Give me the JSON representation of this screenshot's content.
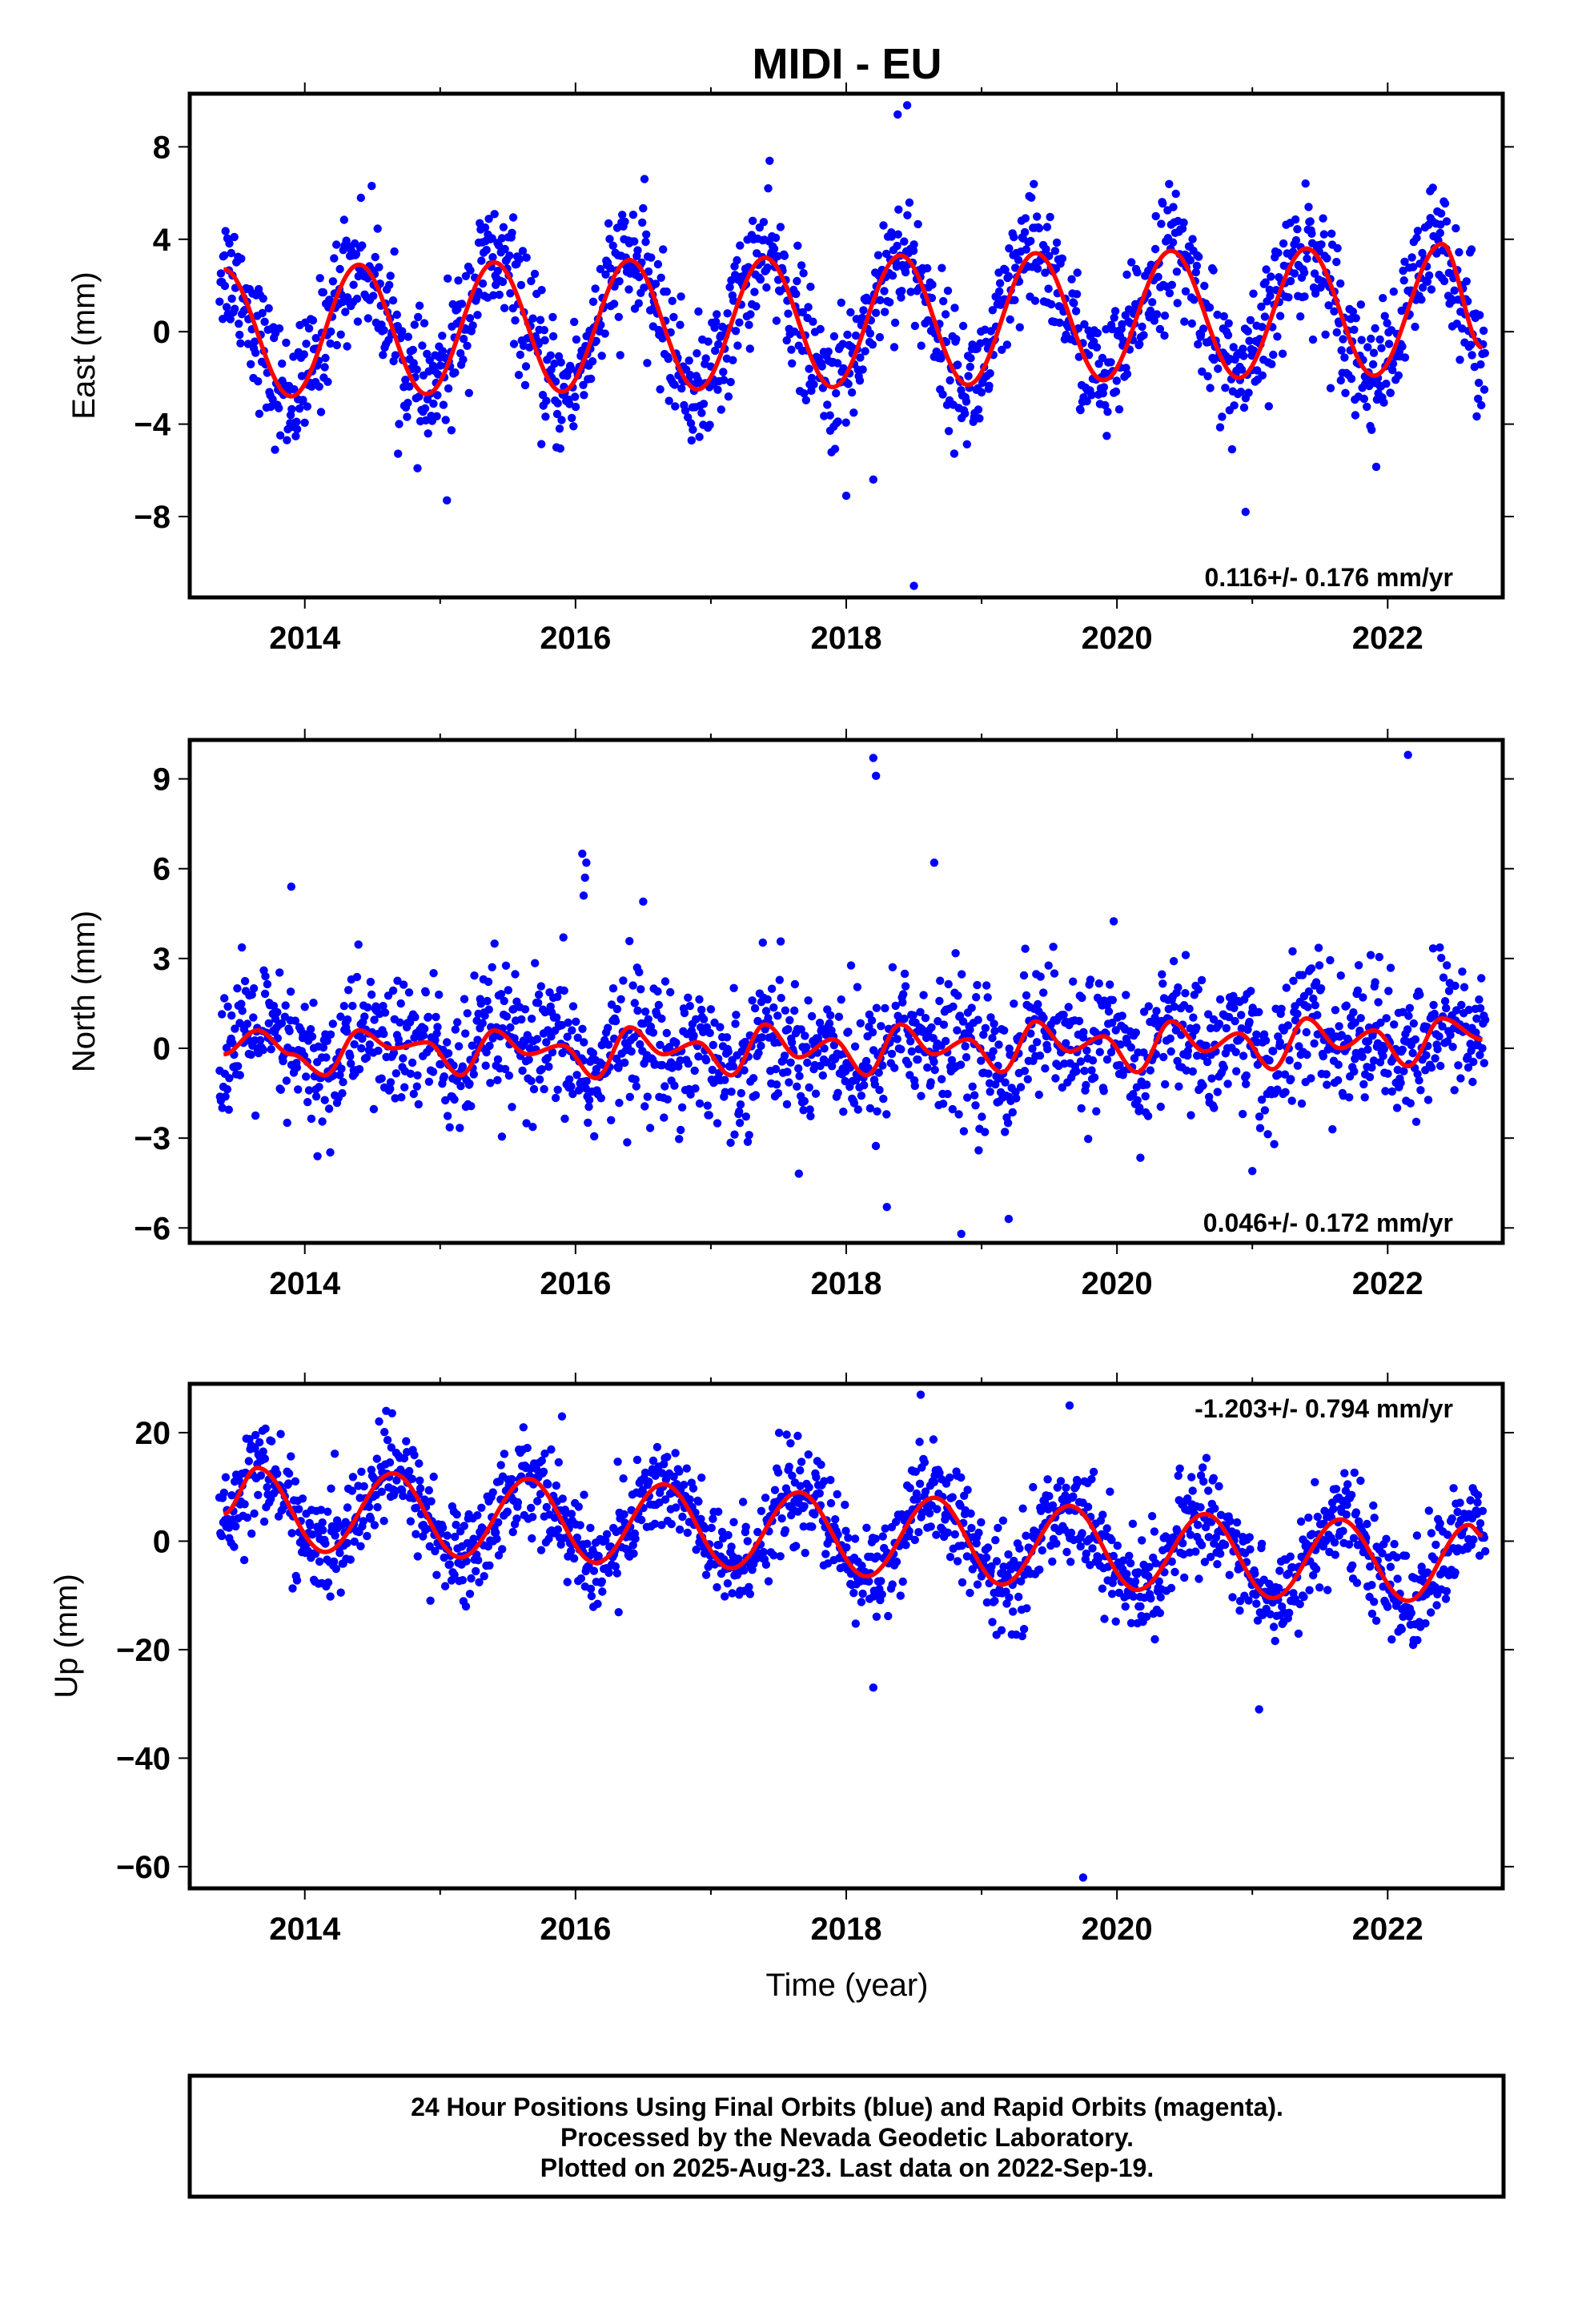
{
  "title": "MIDI - EU",
  "xlabel": "Time (year)",
  "x_tick_labels": [
    "2014",
    "2016",
    "2018",
    "2020",
    "2022"
  ],
  "footer": {
    "line1": "24 Hour Positions Using Final Orbits (blue) and Rapid Orbits (magenta).",
    "line2": "Processed by the Nevada Geodetic Laboratory.",
    "line3": "Plotted on 2025-Aug-23. Last data on 2022-Sep-19."
  },
  "colors": {
    "points": "#0000ff",
    "fit": "#ff0000",
    "frame": "#000000"
  },
  "chart_data": [
    {
      "type": "scatter",
      "ylabel": "East (mm)",
      "rate_label": "0.116+/- 0.176 mm/yr",
      "rate_position": "bottom-right",
      "xlim": [
        2013.15,
        2022.85
      ],
      "ylim": [
        -11.5,
        10.3
      ],
      "y_ticks": [
        8,
        4,
        0,
        -4,
        -8
      ],
      "y_tick_labels": [
        "8",
        "4",
        "0",
        "−4",
        "−8"
      ],
      "series": [
        {
          "role": "observations",
          "x_start": 2013.37,
          "x_end": 2022.72,
          "outliers": [
            [
              2015.05,
              -7.3
            ],
            [
              2018.0,
              -7.1
            ],
            [
              2018.2,
              -6.4
            ],
            [
              2018.5,
              -11.0
            ],
            [
              2018.45,
              9.8
            ],
            [
              2018.38,
              9.4
            ],
            [
              2020.95,
              -7.8
            ]
          ]
        },
        {
          "role": "fit",
          "x": [
            2013.4,
            2013.9,
            2014.4,
            2014.9,
            2015.4,
            2015.9,
            2016.4,
            2016.9,
            2017.4,
            2017.9,
            2018.4,
            2018.9,
            2019.4,
            2019.9,
            2020.4,
            2020.9,
            2021.4,
            2021.9,
            2022.4,
            2022.7
          ],
          "y": [
            2.7,
            -2.8,
            2.9,
            -2.7,
            3.0,
            -2.6,
            3.1,
            -2.5,
            3.2,
            -2.4,
            3.3,
            -2.3,
            3.4,
            -2.1,
            3.5,
            -2.0,
            3.6,
            -1.9,
            3.8,
            -0.7
          ]
        }
      ]
    },
    {
      "type": "scatter",
      "ylabel": "North (mm)",
      "rate_label": "0.046+/- 0.172 mm/yr",
      "rate_position": "bottom-right",
      "xlim": [
        2013.15,
        2022.85
      ],
      "ylim": [
        -6.5,
        10.3
      ],
      "y_ticks": [
        9,
        6,
        3,
        0,
        -3,
        -6
      ],
      "y_tick_labels": [
        "9",
        "6",
        "3",
        "0",
        "−3",
        "−6"
      ],
      "series": [
        {
          "role": "observations",
          "x_start": 2013.37,
          "x_end": 2022.72,
          "outliers": [
            [
              2013.9,
              5.4
            ],
            [
              2016.05,
              6.5
            ],
            [
              2016.08,
              6.2
            ],
            [
              2016.07,
              5.7
            ],
            [
              2016.06,
              5.1
            ],
            [
              2016.5,
              4.9
            ],
            [
              2018.2,
              9.7
            ],
            [
              2018.22,
              9.1
            ],
            [
              2018.65,
              6.2
            ],
            [
              2022.15,
              9.8
            ],
            [
              2018.85,
              -6.2
            ],
            [
              2019.2,
              -5.7
            ],
            [
              2018.3,
              -5.3
            ],
            [
              2021.0,
              -4.1
            ]
          ]
        },
        {
          "role": "fit",
          "x": [
            2013.4,
            2013.65,
            2013.9,
            2014.15,
            2014.4,
            2014.65,
            2014.9,
            2015.15,
            2015.4,
            2015.65,
            2015.9,
            2016.15,
            2016.4,
            2016.65,
            2016.9,
            2017.15,
            2017.4,
            2017.65,
            2017.9,
            2018.15,
            2018.4,
            2018.65,
            2018.9,
            2019.15,
            2019.4,
            2019.65,
            2019.9,
            2020.15,
            2020.4,
            2020.65,
            2020.9,
            2021.15,
            2021.4,
            2021.65,
            2021.9,
            2022.15,
            2022.4,
            2022.7
          ],
          "y": [
            -0.2,
            0.6,
            -0.2,
            -0.9,
            0.6,
            0.0,
            0.2,
            -0.9,
            0.6,
            -0.2,
            0.1,
            -1.0,
            0.7,
            -0.2,
            0.2,
            -0.9,
            0.8,
            -0.3,
            0.3,
            -0.9,
            0.8,
            -0.2,
            0.3,
            -0.8,
            0.9,
            -0.1,
            0.4,
            -0.8,
            0.9,
            -0.1,
            0.5,
            -0.7,
            1.0,
            0.0,
            0.6,
            -0.6,
            1.0,
            0.3
          ]
        }
      ]
    },
    {
      "type": "scatter",
      "ylabel": "Up (mm)",
      "xlabel": "Time (year)",
      "rate_label": "-1.203+/- 0.794 mm/yr",
      "rate_position": "top-right",
      "xlim": [
        2013.15,
        2022.85
      ],
      "ylim": [
        -64,
        29
      ],
      "y_ticks": [
        20,
        0,
        -20,
        -40,
        -60
      ],
      "y_tick_labels": [
        "20",
        "0",
        "−20",
        "−40",
        "−60"
      ],
      "series": [
        {
          "role": "observations",
          "x_start": 2013.37,
          "x_end": 2022.72,
          "outliers": [
            [
              2018.55,
              27
            ],
            [
              2019.65,
              25
            ],
            [
              2015.9,
              23
            ],
            [
              2019.75,
              -62
            ],
            [
              2021.05,
              -31
            ],
            [
              2018.2,
              -27
            ]
          ]
        },
        {
          "role": "fit",
          "x": [
            2013.4,
            2013.65,
            2014.15,
            2014.65,
            2015.15,
            2015.65,
            2016.15,
            2016.65,
            2017.15,
            2017.65,
            2018.15,
            2018.65,
            2019.15,
            2019.65,
            2020.15,
            2020.65,
            2021.15,
            2021.65,
            2022.15,
            2022.6,
            2022.7
          ],
          "y": [
            5,
            13.5,
            -2,
            12.5,
            -3,
            11.5,
            -4,
            10.5,
            -5,
            9,
            -6.5,
            8,
            -8,
            6.5,
            -9,
            5,
            -10.5,
            4,
            -11,
            3,
            1
          ]
        }
      ]
    }
  ]
}
